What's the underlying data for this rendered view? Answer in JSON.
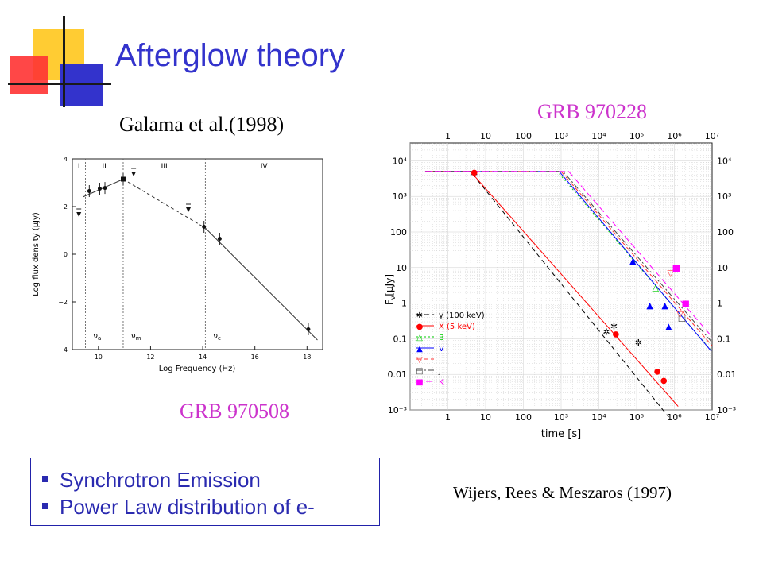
{
  "slide": {
    "title": "Afterglow theory",
    "left_citation": "Galama et al.(1998)",
    "right_label": "GRB 970228",
    "left_label": "GRB 970508",
    "right_citation": "Wijers, Rees & Meszaros (1997)",
    "bullets": [
      "Synchrotron Emission",
      "Power Law distribution of e-"
    ],
    "colors": {
      "title": "#3333cc",
      "grb_label": "#cc33cc",
      "bullet": "#2a2ab0",
      "deco_yellow": "#ffcc33",
      "deco_red": "#ff3333",
      "deco_blue": "#3333cc"
    }
  },
  "chart_data": [
    {
      "type": "scatter",
      "xlabel": "Log Frequency (Hz)",
      "ylabel": "Log flux density (μJy)",
      "xticks": [
        "10",
        "12",
        "14",
        "16",
        "18"
      ],
      "yticks": [
        "4",
        "2",
        "0",
        "−2",
        "−4"
      ],
      "xlim": [
        9,
        18.6
      ],
      "ylim": [
        -4,
        4
      ],
      "regions": [
        "I",
        "II",
        "III",
        "IV"
      ],
      "break_labels": [
        "ν",
        "ν",
        "ν"
      ],
      "break_subs": [
        "a",
        "m",
        "c"
      ],
      "breaks": [
        9.5,
        10.95,
        14.1
      ],
      "points": [
        [
          9.65,
          2.65
        ],
        [
          10.05,
          2.75
        ],
        [
          10.25,
          2.78
        ],
        [
          10.95,
          3.15
        ],
        [
          14.05,
          1.15
        ],
        [
          14.65,
          0.65
        ],
        [
          18.05,
          -3.15
        ]
      ],
      "upper_limits": [
        [
          9.25,
          1.7
        ],
        [
          11.35,
          3.4
        ],
        [
          13.45,
          1.9
        ]
      ],
      "model_line": [
        [
          9.4,
          2.4
        ],
        [
          10.95,
          3.15
        ],
        [
          14.1,
          1.1
        ],
        [
          18.4,
          -3.6
        ]
      ]
    },
    {
      "type": "line",
      "xlabel": "time [s]",
      "ylabel": "F",
      "ylabel_sub": "ν",
      "ylabel_unit": "[μJy]",
      "xscale": "log",
      "yscale": "log",
      "xlim_exp": [
        -1,
        7
      ],
      "ylim_exp": [
        -3,
        4.5
      ],
      "xticks_bottom": [
        "1",
        "10",
        "100",
        "10³",
        "10⁴",
        "10⁵",
        "10⁶",
        "10⁷"
      ],
      "xticks_top": [
        "1",
        "10",
        "100",
        "10³",
        "10⁴",
        "10⁵",
        "10⁶",
        "10⁷"
      ],
      "yticks": [
        "10⁴",
        "10³",
        "100",
        "10",
        "1",
        "0.1",
        "0.01",
        "10⁻³"
      ],
      "grid": true,
      "legend_position": "bottom-left",
      "series": [
        {
          "name": "γ (100 keV)",
          "color": "#000000",
          "dash": "6 4",
          "symbol": "✲",
          "line": [
            [
              -0.6,
              3.7
            ],
            [
              0.6,
              3.7
            ],
            [
              5.85,
              -3.2
            ]
          ],
          "points": [
            [
              0.7,
              3.65
            ],
            [
              4.2,
              -0.8
            ],
            [
              4.4,
              -0.65
            ],
            [
              5.05,
              -1.1
            ]
          ]
        },
        {
          "name": "X (5 keV)",
          "color": "#ff0000",
          "dash": "",
          "symbol": "●",
          "line": [
            [
              -0.6,
              3.7
            ],
            [
              0.6,
              3.7
            ],
            [
              6.1,
              -2.9
            ]
          ],
          "points": [
            [
              0.7,
              3.7
            ],
            [
              4.45,
              -0.85
            ],
            [
              5.55,
              -1.9
            ],
            [
              5.72,
              -2.15
            ]
          ]
        },
        {
          "name": "B",
          "color": "#00cc00",
          "dash": "2 3",
          "symbol": "△",
          "line": [
            [
              -0.6,
              3.7
            ],
            [
              2.9,
              3.7
            ],
            [
              6.95,
              -1.3
            ]
          ],
          "points": [
            [
              5.5,
              0.45
            ]
          ]
        },
        {
          "name": "V",
          "color": "#0000ff",
          "dash": "",
          "symbol": "▲",
          "line": [
            [
              -0.6,
              3.7
            ],
            [
              2.95,
              3.7
            ],
            [
              6.98,
              -1.35
            ]
          ],
          "points": [
            [
              4.9,
              1.2
            ],
            [
              5.35,
              -0.05
            ],
            [
              5.75,
              -0.05
            ],
            [
              5.85,
              -0.65
            ]
          ]
        },
        {
          "name": "I",
          "color": "#ff3333",
          "dash": "6 3",
          "symbol": "▽",
          "line": [
            [
              -0.6,
              3.7
            ],
            [
              3.0,
              3.7
            ],
            [
              7.0,
              -1.2
            ]
          ],
          "points": [
            [
              5.9,
              0.85
            ],
            [
              6.15,
              -0.3
            ]
          ]
        },
        {
          "name": "J",
          "color": "#444444",
          "dash": "7 3 2 3",
          "symbol": "□",
          "line": [
            [
              -0.6,
              3.7
            ],
            [
              3.05,
              3.7
            ],
            [
              7.0,
              -1.1
            ]
          ],
          "points": [
            [
              6.2,
              -0.4
            ]
          ]
        },
        {
          "name": "K",
          "color": "#ff00ff",
          "dash": "8 4",
          "symbol": "■",
          "line": [
            [
              -0.6,
              3.7
            ],
            [
              3.2,
              3.7
            ],
            [
              7.0,
              -0.95
            ]
          ],
          "points": [
            [
              6.05,
              1.0
            ],
            [
              6.3,
              0.0
            ]
          ]
        }
      ]
    }
  ]
}
